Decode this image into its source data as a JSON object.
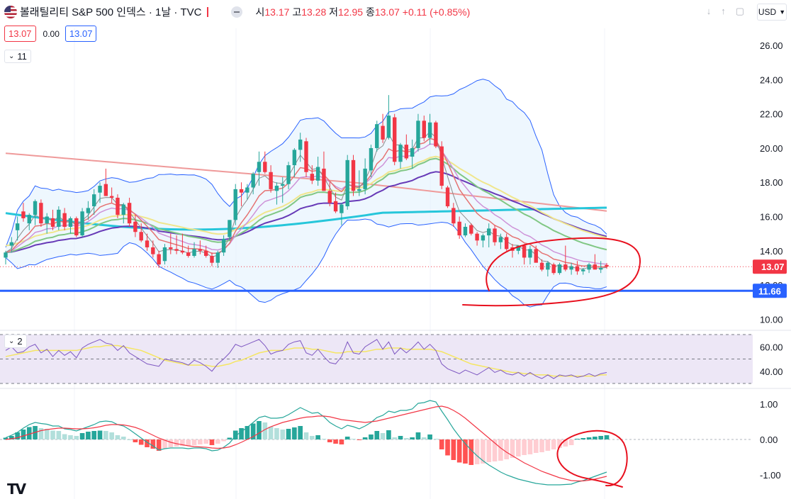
{
  "header": {
    "title": "볼래틸리티 S&P 500 인덱스 · 1날 · TVC",
    "open_label": "시",
    "open": "13.17",
    "high_label": "고",
    "high": "13.28",
    "low_label": "저",
    "low": "12.95",
    "close_label": "종",
    "close": "13.07",
    "change": "+0.11 (+0.85%)",
    "sell_price": "13.07",
    "spread": "0.00",
    "buy_price": "13.07",
    "currency": "USD",
    "ma_legend_count": "11",
    "rsi_legend_count": "2",
    "logo": "TV"
  },
  "colors": {
    "up": "#26a69a",
    "down": "#f23645",
    "bb": "#2962ff",
    "bb_fill": "#e3f2fd",
    "ma_fast": "#8c8c8c",
    "ma_pink": "#e57373",
    "ma_violet": "#ce93d8",
    "ma_green": "#81c784",
    "ma_yellow": "#f0e68c",
    "ma_teal": "#26c6da",
    "ma_purple": "#673ab7",
    "ma_salmon": "#ef9a9a",
    "support": "#2962ff",
    "annotation": "#e8101e",
    "rsi_bg": "#ede7f6",
    "rsi_line": "#7e57c2",
    "rsi_ma": "#f5e663",
    "macd": "#26a69a",
    "signal": "#f23645"
  },
  "chart_data": [
    {
      "type": "candlestick",
      "pane": "price",
      "ylim": [
        9.6,
        27.0
      ],
      "y_ticks": [
        "26.00",
        "24.00",
        "22.00",
        "20.00",
        "18.00",
        "16.00",
        "14.00",
        "12.00",
        "10.00"
      ],
      "last_price_tag": "13.07",
      "support_level": 11.66,
      "support_tag": "11.66",
      "candles": [
        [
          13.6,
          14.0,
          13.2,
          13.9
        ],
        [
          14.3,
          14.8,
          13.9,
          14.5
        ],
        [
          15.2,
          16.0,
          14.6,
          15.6
        ],
        [
          16.3,
          16.8,
          15.7,
          15.9
        ],
        [
          15.6,
          16.2,
          15.2,
          16.1
        ],
        [
          16.1,
          17.0,
          15.5,
          16.9
        ],
        [
          16.8,
          17.0,
          15.4,
          15.6
        ],
        [
          15.6,
          16.2,
          15.0,
          16.0
        ],
        [
          15.9,
          16.4,
          15.2,
          15.4
        ],
        [
          15.4,
          16.6,
          15.2,
          16.4
        ],
        [
          16.2,
          16.5,
          15.2,
          15.4
        ],
        [
          15.4,
          16.0,
          15.0,
          15.9
        ],
        [
          15.9,
          16.0,
          14.8,
          14.9
        ],
        [
          14.9,
          16.5,
          14.8,
          16.3
        ],
        [
          16.2,
          16.9,
          15.8,
          16.5
        ],
        [
          16.6,
          17.6,
          16.1,
          17.3
        ],
        [
          17.4,
          18.0,
          16.8,
          17.8
        ],
        [
          17.9,
          18.8,
          17.2,
          17.2
        ],
        [
          17.2,
          17.7,
          16.8,
          17.1
        ],
        [
          17.1,
          17.3,
          15.9,
          16.1
        ],
        [
          16.1,
          16.8,
          15.6,
          16.7
        ],
        [
          16.8,
          17.1,
          15.4,
          15.6
        ],
        [
          15.7,
          16.1,
          14.8,
          15.1
        ],
        [
          15.1,
          15.6,
          14.5,
          14.6
        ],
        [
          14.6,
          15.0,
          14.0,
          14.2
        ],
        [
          14.2,
          14.6,
          13.6,
          13.8
        ],
        [
          13.8,
          14.0,
          13.0,
          13.2
        ],
        [
          13.4,
          14.4,
          13.2,
          14.2
        ],
        [
          14.2,
          15.0,
          13.8,
          14.1
        ],
        [
          14.1,
          14.9,
          13.8,
          14.0
        ],
        [
          14.0,
          15.0,
          13.8,
          13.9
        ],
        [
          13.9,
          14.3,
          13.6,
          13.7
        ],
        [
          13.7,
          14.5,
          13.6,
          14.1
        ],
        [
          14.1,
          14.6,
          13.8,
          14.0
        ],
        [
          14.0,
          14.3,
          13.6,
          13.7
        ],
        [
          13.7,
          13.9,
          13.1,
          13.3
        ],
        [
          13.3,
          14.0,
          13.0,
          13.9
        ],
        [
          13.9,
          14.9,
          13.7,
          14.7
        ],
        [
          14.8,
          15.8,
          14.6,
          15.8
        ],
        [
          15.8,
          17.9,
          15.5,
          17.6
        ],
        [
          17.6,
          18.0,
          16.6,
          17.4
        ],
        [
          17.4,
          17.9,
          17.0,
          17.7
        ],
        [
          17.7,
          18.6,
          17.3,
          18.5
        ],
        [
          18.6,
          19.8,
          17.8,
          19.2
        ],
        [
          19.2,
          19.8,
          18.5,
          18.6
        ],
        [
          18.6,
          19.0,
          17.4,
          17.6
        ],
        [
          17.5,
          18.0,
          16.7,
          17.8
        ],
        [
          17.8,
          18.3,
          16.8,
          17.9
        ],
        [
          17.9,
          19.2,
          17.6,
          19.0
        ],
        [
          19.0,
          20.0,
          18.3,
          19.9
        ],
        [
          19.9,
          20.9,
          19.2,
          20.5
        ],
        [
          20.4,
          20.6,
          18.3,
          18.6
        ],
        [
          18.5,
          19.0,
          17.9,
          18.1
        ],
        [
          18.1,
          19.5,
          17.8,
          18.9
        ],
        [
          18.8,
          19.8,
          17.5,
          17.5
        ],
        [
          17.5,
          18.0,
          16.6,
          16.8
        ],
        [
          16.9,
          17.4,
          16.2,
          16.3
        ],
        [
          16.2,
          16.8,
          15.5,
          16.7
        ],
        [
          16.6,
          19.6,
          16.4,
          19.3
        ],
        [
          19.3,
          19.6,
          17.2,
          17.5
        ],
        [
          17.5,
          18.7,
          17.2,
          17.6
        ],
        [
          17.6,
          19.4,
          17.3,
          18.8
        ],
        [
          18.7,
          20.2,
          18.3,
          20.0
        ],
        [
          20.0,
          21.6,
          19.8,
          21.4
        ],
        [
          21.3,
          22.0,
          20.3,
          20.5
        ],
        [
          20.6,
          23.1,
          20.5,
          21.9
        ],
        [
          21.8,
          22.0,
          19.0,
          19.2
        ],
        [
          19.2,
          20.3,
          18.8,
          20.2
        ],
        [
          20.2,
          20.8,
          19.3,
          19.4
        ],
        [
          19.5,
          20.5,
          18.8,
          20.0
        ],
        [
          20.0,
          22.0,
          19.8,
          21.6
        ],
        [
          21.6,
          21.9,
          20.4,
          20.6
        ],
        [
          20.6,
          22.0,
          20.2,
          21.5
        ],
        [
          21.5,
          21.6,
          20.0,
          20.1
        ],
        [
          20.1,
          20.4,
          17.6,
          17.8
        ],
        [
          17.7,
          17.8,
          16.5,
          16.6
        ],
        [
          16.5,
          16.8,
          15.4,
          15.6
        ],
        [
          15.7,
          16.0,
          14.7,
          14.9
        ],
        [
          14.9,
          15.6,
          14.8,
          15.4
        ],
        [
          15.5,
          15.6,
          14.9,
          15.0
        ],
        [
          15.0,
          15.1,
          14.3,
          14.6
        ],
        [
          14.6,
          15.0,
          14.2,
          14.9
        ],
        [
          14.9,
          15.6,
          14.2,
          15.3
        ],
        [
          15.3,
          15.5,
          14.3,
          14.5
        ],
        [
          14.5,
          15.0,
          14.1,
          14.8
        ],
        [
          14.8,
          15.0,
          14.0,
          14.1
        ],
        [
          14.2,
          14.4,
          13.6,
          14.0
        ],
        [
          14.0,
          14.2,
          13.8,
          14.3
        ],
        [
          14.3,
          14.4,
          13.2,
          13.6
        ],
        [
          13.6,
          14.3,
          13.2,
          14.1
        ],
        [
          14.1,
          14.3,
          13.4,
          13.3
        ],
        [
          13.3,
          13.5,
          12.8,
          12.9
        ],
        [
          12.9,
          13.4,
          12.5,
          13.3
        ],
        [
          13.2,
          13.3,
          12.6,
          12.7
        ],
        [
          12.7,
          13.3,
          12.6,
          13.2
        ],
        [
          13.2,
          14.3,
          12.8,
          12.9
        ],
        [
          12.9,
          13.3,
          12.6,
          13.1
        ],
        [
          13.1,
          13.4,
          12.6,
          12.8
        ],
        [
          12.8,
          13.0,
          12.6,
          12.9
        ],
        [
          12.9,
          13.3,
          12.7,
          13.2
        ],
        [
          13.2,
          13.8,
          13.0,
          12.9
        ],
        [
          12.9,
          13.4,
          12.7,
          13.0
        ],
        [
          13.17,
          13.28,
          12.95,
          13.07
        ]
      ]
    },
    {
      "type": "line",
      "pane": "rsi",
      "ylim": [
        30,
        70
      ],
      "y_ticks": [
        "60.00",
        "40.00"
      ],
      "band_levels": [
        70,
        50,
        30
      ],
      "rsi": [
        57,
        60,
        55,
        56,
        60,
        62,
        55,
        58,
        52,
        57,
        53,
        56,
        51,
        59,
        62,
        64,
        66,
        63,
        62,
        57,
        61,
        55,
        52,
        49,
        46,
        45,
        44,
        50,
        49,
        48,
        47,
        45,
        49,
        47,
        44,
        40,
        46,
        50,
        55,
        62,
        60,
        62,
        64,
        66,
        61,
        54,
        56,
        57,
        62,
        64,
        65,
        55,
        53,
        58,
        52,
        47,
        46,
        52,
        64,
        55,
        54,
        60,
        63,
        66,
        58,
        64,
        54,
        59,
        55,
        59,
        64,
        58,
        62,
        57,
        46,
        42,
        40,
        38,
        41,
        39,
        37,
        40,
        43,
        39,
        41,
        38,
        37,
        39,
        36,
        39,
        36,
        34,
        37,
        34,
        37,
        36,
        37,
        35,
        36,
        38,
        36,
        38,
        39
      ],
      "rsi_ma": [
        52,
        53,
        54,
        55,
        56,
        57,
        57,
        57,
        57,
        57,
        57,
        57,
        57,
        58,
        59,
        60,
        60,
        61,
        61,
        61,
        60,
        59,
        58,
        57,
        55,
        53,
        51,
        49,
        48,
        47,
        46,
        45,
        45,
        45,
        45,
        44,
        44,
        45,
        46,
        48,
        49,
        51,
        53,
        55,
        56,
        57,
        57,
        57,
        58,
        59,
        59,
        59,
        58,
        58,
        57,
        56,
        55,
        55,
        56,
        56,
        56,
        56,
        57,
        58,
        58,
        59,
        59,
        59,
        58,
        58,
        58,
        58,
        58,
        57,
        56,
        54,
        52,
        50,
        48,
        46,
        45,
        44,
        43,
        42,
        41,
        40,
        39,
        39,
        38,
        38,
        37,
        37,
        37,
        36,
        36,
        36,
        36,
        36,
        36,
        36,
        36,
        37,
        37
      ]
    },
    {
      "type": "bar",
      "pane": "macd",
      "ylim": [
        -1.6,
        1.2
      ],
      "y_ticks": [
        "1.00",
        "0.00",
        "-1.00"
      ],
      "histogram": [
        0.05,
        0.1,
        0.2,
        0.28,
        0.35,
        0.38,
        0.32,
        0.3,
        0.25,
        0.24,
        0.15,
        0.12,
        0.1,
        0.18,
        0.22,
        0.24,
        0.25,
        0.24,
        0.2,
        0.12,
        0.08,
        0.0,
        -0.08,
        -0.15,
        -0.22,
        -0.26,
        -0.32,
        -0.25,
        -0.22,
        -0.2,
        -0.18,
        -0.17,
        -0.16,
        -0.14,
        -0.12,
        -0.16,
        -0.12,
        -0.05,
        0.05,
        0.25,
        0.32,
        0.38,
        0.45,
        0.52,
        0.48,
        0.36,
        0.32,
        0.28,
        0.3,
        0.34,
        0.38,
        0.2,
        0.1,
        0.12,
        0.02,
        -0.08,
        -0.12,
        -0.14,
        0.08,
        0.02,
        -0.02,
        0.06,
        0.14,
        0.24,
        0.18,
        0.26,
        0.06,
        0.1,
        0.04,
        0.06,
        0.2,
        0.06,
        0.14,
        0.02,
        -0.28,
        -0.45,
        -0.58,
        -0.65,
        -0.68,
        -0.72,
        -0.7,
        -0.68,
        -0.64,
        -0.62,
        -0.6,
        -0.56,
        -0.52,
        -0.48,
        -0.44,
        -0.42,
        -0.38,
        -0.36,
        -0.32,
        -0.28,
        -0.24,
        -0.2,
        -0.16,
        0.02,
        0.04,
        0.06,
        0.08,
        0.1,
        0.12
      ],
      "macd": [
        0.05,
        0.12,
        0.2,
        0.32,
        0.42,
        0.48,
        0.45,
        0.43,
        0.38,
        0.38,
        0.3,
        0.28,
        0.24,
        0.3,
        0.36,
        0.42,
        0.5,
        0.52,
        0.5,
        0.42,
        0.38,
        0.28,
        0.16,
        0.04,
        -0.08,
        -0.18,
        -0.3,
        -0.26,
        -0.24,
        -0.24,
        -0.24,
        -0.26,
        -0.24,
        -0.24,
        -0.26,
        -0.32,
        -0.3,
        -0.22,
        -0.1,
        0.1,
        0.22,
        0.34,
        0.48,
        0.62,
        0.66,
        0.6,
        0.6,
        0.62,
        0.7,
        0.8,
        0.9,
        0.82,
        0.74,
        0.76,
        0.64,
        0.48,
        0.38,
        0.3,
        0.4,
        0.36,
        0.3,
        0.38,
        0.48,
        0.62,
        0.68,
        0.8,
        0.76,
        0.82,
        0.82,
        0.86,
        1.02,
        1.04,
        1.1,
        1.06,
        0.8,
        0.56,
        0.3,
        0.08,
        -0.12,
        -0.3,
        -0.46,
        -0.6,
        -0.72,
        -0.82,
        -0.92,
        -1.0,
        -1.06,
        -1.12,
        -1.16,
        -1.2,
        -1.24,
        -1.26,
        -1.28,
        -1.28,
        -1.28,
        -1.27,
        -1.26,
        -1.2,
        -1.16,
        -1.1,
        -1.04,
        -0.98,
        -0.92
      ],
      "signal": [
        0.0,
        0.02,
        0.05,
        0.1,
        0.15,
        0.2,
        0.25,
        0.28,
        0.3,
        0.32,
        0.32,
        0.31,
        0.3,
        0.3,
        0.31,
        0.33,
        0.36,
        0.4,
        0.42,
        0.42,
        0.41,
        0.38,
        0.34,
        0.28,
        0.2,
        0.12,
        0.04,
        -0.02,
        -0.08,
        -0.12,
        -0.15,
        -0.18,
        -0.2,
        -0.21,
        -0.22,
        -0.24,
        -0.25,
        -0.24,
        -0.21,
        -0.15,
        -0.08,
        0.0,
        0.08,
        0.18,
        0.28,
        0.36,
        0.42,
        0.48,
        0.52,
        0.56,
        0.6,
        0.63,
        0.64,
        0.66,
        0.66,
        0.64,
        0.6,
        0.56,
        0.54,
        0.52,
        0.5,
        0.48,
        0.5,
        0.52,
        0.56,
        0.6,
        0.64,
        0.68,
        0.72,
        0.76,
        0.8,
        0.84,
        0.88,
        0.92,
        0.94,
        0.9,
        0.82,
        0.72,
        0.6,
        0.46,
        0.32,
        0.18,
        0.04,
        -0.1,
        -0.24,
        -0.36,
        -0.46,
        -0.56,
        -0.66,
        -0.74,
        -0.82,
        -0.9,
        -0.96,
        -1.02,
        -1.08,
        -1.12,
        -1.16,
        -1.17,
        -1.17,
        -1.15,
        -1.12,
        -1.08,
        -1.04
      ]
    }
  ]
}
